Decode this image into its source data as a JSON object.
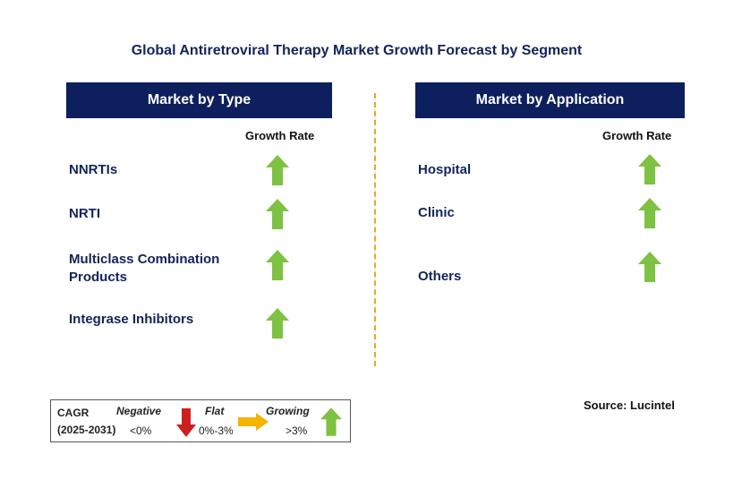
{
  "title": "Global Antiretroviral Therapy Market Growth Forecast by Segment",
  "type_panel": {
    "header": "Market by Type",
    "column_label": "Growth Rate",
    "items": [
      {
        "label": "NNRTIs",
        "trend": "growing"
      },
      {
        "label": "NRTI",
        "trend": "growing"
      },
      {
        "label": "Multiclass Combination\nProducts",
        "trend": "growing"
      },
      {
        "label": "Integrase Inhibitors",
        "trend": "growing"
      }
    ]
  },
  "application_panel": {
    "header": "Market by Application",
    "column_label": "Growth Rate",
    "items": [
      {
        "label": "Hospital",
        "trend": "growing"
      },
      {
        "label": "Clinic",
        "trend": "growing"
      },
      {
        "label": "Others",
        "trend": "growing"
      }
    ]
  },
  "legend": {
    "cagr": "CAGR",
    "period": "(2025-2031)",
    "negative_label": "Negative",
    "negative_range": "<0%",
    "flat_label": "Flat",
    "flat_range": "0%-3%",
    "growing_label": "Growing",
    "growing_range": ">3%"
  },
  "source": "Source: Lucintel",
  "colors": {
    "header_bg": "#0d1f5c",
    "growing": "#7dc242",
    "negative": "#cc1f1f",
    "flat": "#f5b400",
    "divider": "#f0a61e"
  },
  "icons": {
    "growing": "up-arrow-icon",
    "negative": "down-arrow-icon",
    "flat": "right-arrow-icon"
  }
}
